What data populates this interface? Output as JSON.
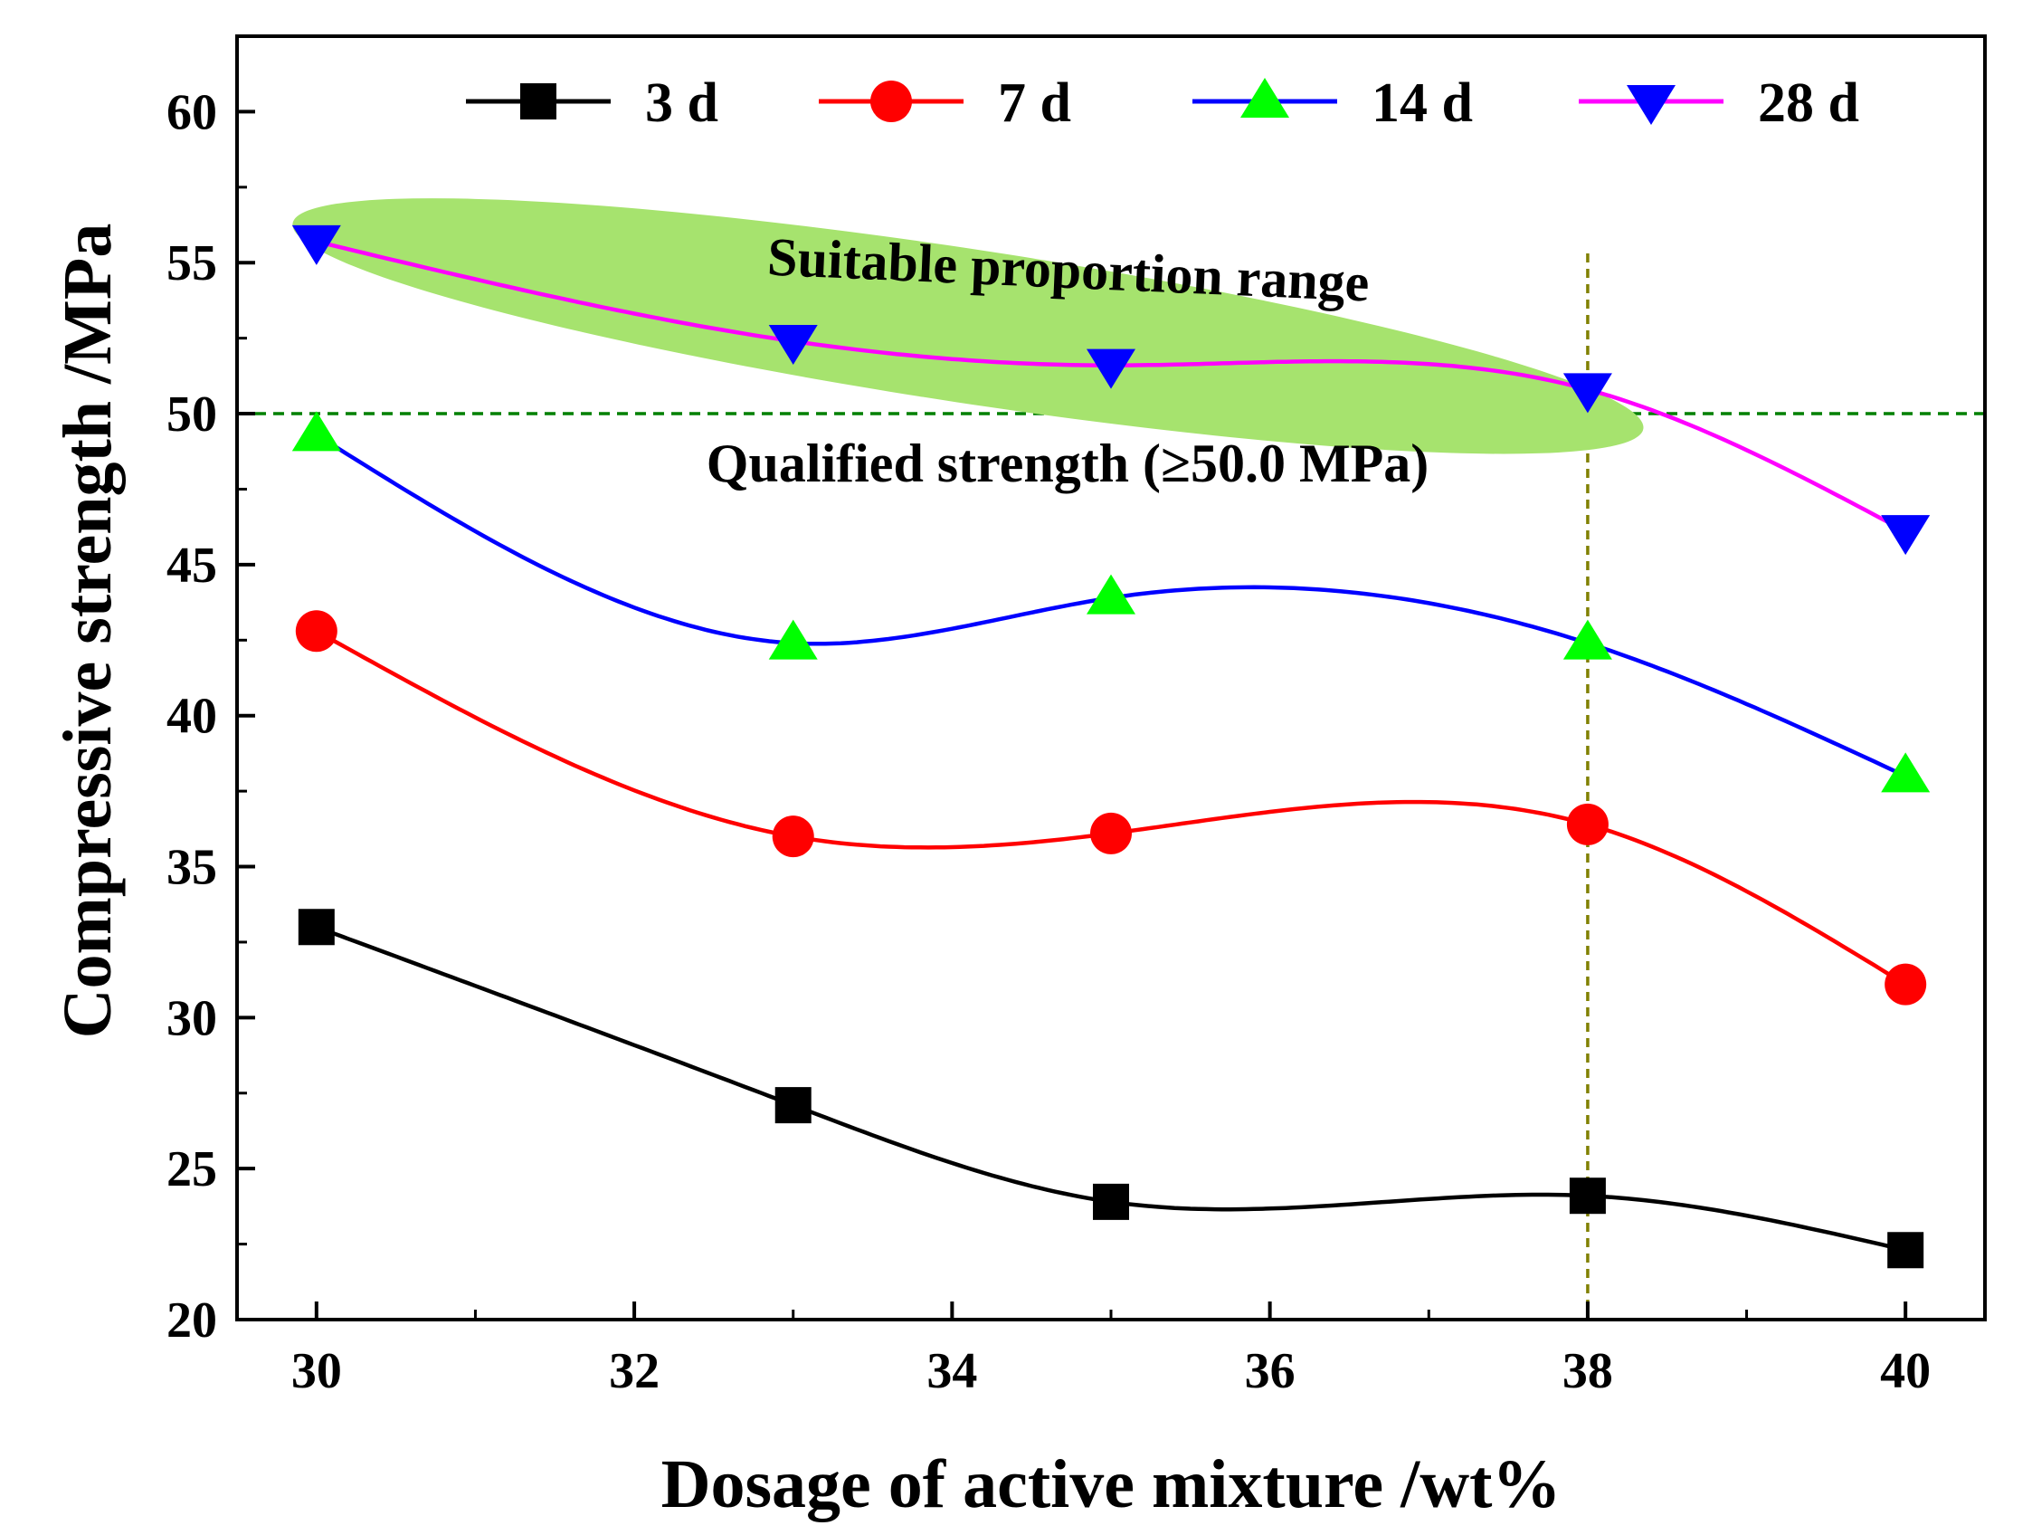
{
  "chart_data": {
    "type": "line",
    "xlabel": "Dosage of active mixture /wt%",
    "ylabel": "Compressive strength /MPa",
    "xlim": [
      29.5,
      40.5
    ],
    "ylim": [
      20,
      62.5
    ],
    "xticks": [
      30,
      32,
      34,
      36,
      38,
      40
    ],
    "yticks": [
      20,
      25,
      30,
      35,
      40,
      45,
      50,
      55,
      60
    ],
    "x": [
      30,
      33,
      35,
      38,
      40
    ],
    "series": [
      {
        "name": "3 d",
        "values": [
          33.0,
          27.1,
          23.9,
          24.1,
          22.3
        ],
        "color": "#000000",
        "marker": "square"
      },
      {
        "name": "7 d",
        "values": [
          42.8,
          36.0,
          36.1,
          36.4,
          31.1
        ],
        "color": "#ff0000",
        "marker": "circle"
      },
      {
        "name": "14 d",
        "values": [
          49.3,
          42.4,
          43.9,
          42.4,
          38.0
        ],
        "color": "#0000ff",
        "marker": "triangle-up",
        "marker_color": "#00ff00"
      },
      {
        "name": "28 d",
        "values": [
          55.7,
          52.4,
          51.6,
          50.8,
          46.1
        ],
        "color": "#ff00ff",
        "marker": "triangle-down",
        "marker_color": "#0000ff"
      }
    ],
    "reference_lines": {
      "horizontal_y": 50,
      "horizontal_color": "#008000",
      "vertical_x": 38,
      "vertical_color": "#808000"
    },
    "annotations": {
      "suitable_range": "Suitable proportion range",
      "qualified_strength": "Qualified strength (≥50.0 MPa)",
      "highlight_color": "#a6e36e"
    },
    "legend_position": "top"
  }
}
